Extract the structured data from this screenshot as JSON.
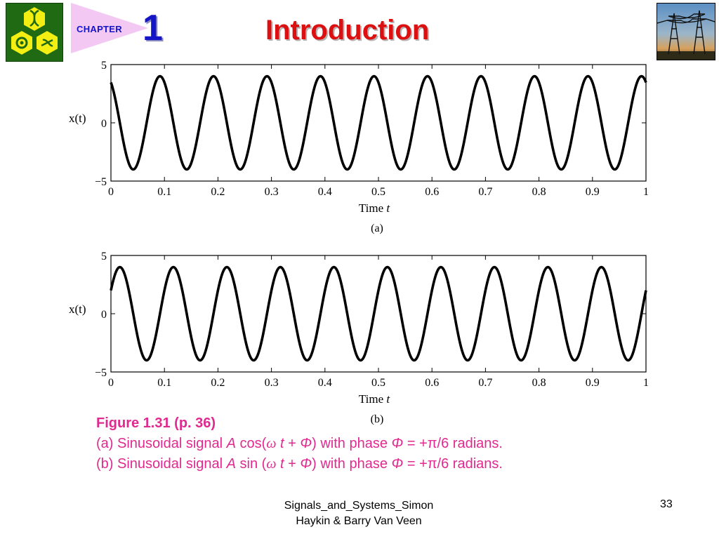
{
  "header": {
    "chapter_label": "CHAPTER",
    "chapter_number": "1",
    "title": "Introduction",
    "colors": {
      "chapter": "#1515c8",
      "title": "#dc1010",
      "banner": "#f3c8f3",
      "logo_bg": "#1f6a12",
      "logo_hex": "#f3ef12"
    }
  },
  "chart_data": [
    {
      "type": "line",
      "panel_label": "(a)",
      "function": "A cos(omega t + phi)",
      "amplitude": 4,
      "cycles_per_unit": 10,
      "phase": "+pi/6",
      "x_range": [
        0,
        1
      ],
      "ylim": [
        -5,
        5
      ],
      "x_ticks": [
        "0",
        "0.1",
        "0.2",
        "0.3",
        "0.4",
        "0.5",
        "0.6",
        "0.7",
        "0.8",
        "0.9",
        "1"
      ],
      "y_ticks": [
        "−5",
        "0",
        "5"
      ],
      "xlabel": "Time",
      "xlabel_var": "t",
      "ylabel": "x(t)",
      "grid": false
    },
    {
      "type": "line",
      "panel_label": "(b)",
      "function": "A sin(omega t + phi)",
      "amplitude": 4,
      "cycles_per_unit": 10,
      "phase": "+pi/6",
      "x_range": [
        0,
        1
      ],
      "ylim": [
        -5,
        5
      ],
      "x_ticks": [
        "0",
        "0.1",
        "0.2",
        "0.3",
        "0.4",
        "0.5",
        "0.6",
        "0.7",
        "0.8",
        "0.9",
        "1"
      ],
      "y_ticks": [
        "−5",
        "0",
        "5"
      ],
      "xlabel": "Time",
      "xlabel_var": "t",
      "ylabel": "x(t)",
      "grid": false
    }
  ],
  "caption": {
    "title": "Figure 1.31  (p. 36)",
    "line_a": {
      "prefix": "(a) Sinusoidal signal ",
      "A": "A",
      "func": " cos(",
      "omega": "ω",
      "t": " t",
      "plus": " + ",
      "phi": "Φ",
      "mid": ") with phase ",
      "phi2": "Φ",
      "value": " = +π/6 radians."
    },
    "line_b": {
      "prefix": "(b) Sinusoidal signal ",
      "A": "A",
      "func": " sin (",
      "omega": "ω",
      "t": " t",
      "plus": " + ",
      "phi": "Φ",
      "mid": ") with phase ",
      "phi2": "Φ",
      "value": " = +π/6 radians."
    },
    "color": "#e02a8f"
  },
  "footer": {
    "line1": "Signals_and_Systems_Simon",
    "line2": "Haykin & Barry Van Veen",
    "page": "33"
  }
}
